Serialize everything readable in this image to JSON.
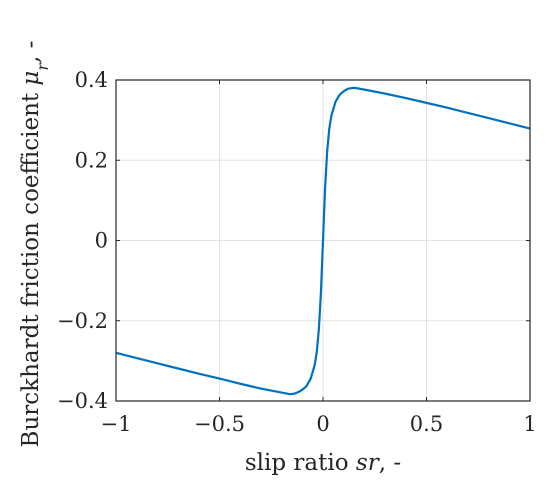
{
  "chart_data": {
    "type": "line",
    "xlabel": {
      "pre": "slip ratio ",
      "var": "sr",
      "post": ", -"
    },
    "ylabel": {
      "pre": "Burckhardt friction coefficient ",
      "var": "μ",
      "sub": "r",
      "post": ", -"
    },
    "xlim": [
      -1,
      1
    ],
    "ylim": [
      -0.4,
      0.4
    ],
    "xticks": [
      -1,
      -0.5,
      0,
      0.5,
      1
    ],
    "xtick_labels": [
      "−1",
      "−0.5",
      "0",
      "0.5",
      "1"
    ],
    "yticks": [
      -0.4,
      -0.2,
      0,
      0.2,
      0.4
    ],
    "ytick_labels": [
      "−0.4",
      "−0.2",
      "0",
      "0.2",
      "0.4"
    ],
    "grid": true,
    "series": [
      {
        "color": "#0072BD",
        "points": [
          [
            -1,
            -0.28
          ],
          [
            -0.9,
            -0.293
          ],
          [
            -0.8,
            -0.306
          ],
          [
            -0.7,
            -0.319
          ],
          [
            -0.6,
            -0.332
          ],
          [
            -0.5,
            -0.344
          ],
          [
            -0.4,
            -0.357
          ],
          [
            -0.3,
            -0.369
          ],
          [
            -0.2,
            -0.379
          ],
          [
            -0.16,
            -0.383
          ],
          [
            -0.14,
            -0.382
          ],
          [
            -0.12,
            -0.378
          ],
          [
            -0.1,
            -0.372
          ],
          [
            -0.08,
            -0.363
          ],
          [
            -0.06,
            -0.345
          ],
          [
            -0.04,
            -0.31
          ],
          [
            -0.03,
            -0.277
          ],
          [
            -0.02,
            -0.221
          ],
          [
            -0.01,
            -0.13
          ],
          [
            0,
            0
          ],
          [
            0.01,
            0.13
          ],
          [
            0.02,
            0.221
          ],
          [
            0.03,
            0.277
          ],
          [
            0.04,
            0.31
          ],
          [
            0.06,
            0.345
          ],
          [
            0.08,
            0.363
          ],
          [
            0.1,
            0.372
          ],
          [
            0.12,
            0.378
          ],
          [
            0.14,
            0.38
          ],
          [
            0.16,
            0.38
          ],
          [
            0.2,
            0.376
          ],
          [
            0.3,
            0.366
          ],
          [
            0.4,
            0.355
          ],
          [
            0.5,
            0.343
          ],
          [
            0.6,
            0.331
          ],
          [
            0.7,
            0.318
          ],
          [
            0.8,
            0.305
          ],
          [
            0.9,
            0.292
          ],
          [
            1,
            0.279
          ]
        ]
      }
    ]
  }
}
